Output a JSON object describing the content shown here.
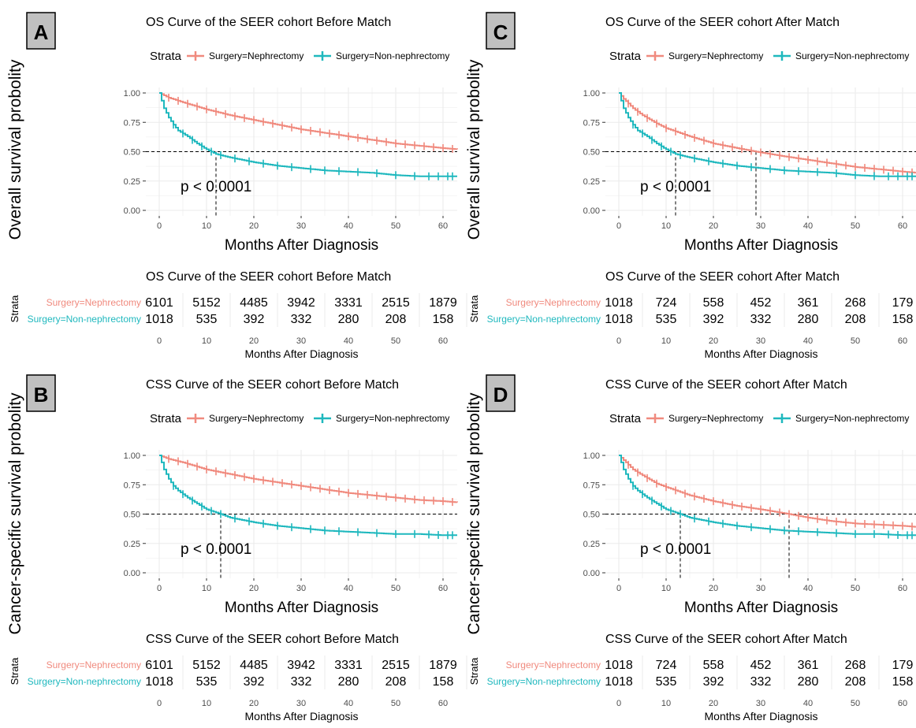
{
  "colors": {
    "nephrectomy": "#F08A7E",
    "non_nephrectomy": "#1FB8BE",
    "median_line": "#000000",
    "panel_badge": "#C0C0C0",
    "grid": "#EBEBEB",
    "axis_text": "#4D4D4D"
  },
  "y_labels": {
    "top": "Overall survival probolity",
    "bottom": "Cancer-specific survival probolity"
  },
  "legend": {
    "title": "Strata",
    "nephrectomy": "Surgery=Nephrectomy",
    "non_nephrectomy": "Surgery=Non-nephrectomy"
  },
  "risk_table": {
    "strata_label": "Strata",
    "xlabel": "Months After Diagnosis"
  },
  "chart_data": [
    {
      "panel": "A",
      "type": "line",
      "title": "OS Curve of the SEER cohort Before Match",
      "xlabel": "Months After Diagnosis",
      "ylabel": "Overall survival probolity",
      "xlim": [
        0,
        63
      ],
      "ylim": [
        0,
        1
      ],
      "x_ticks": [
        0,
        10,
        20,
        30,
        40,
        50,
        60
      ],
      "y_ticks": [
        "0.00",
        "0.25",
        "0.50",
        "0.75",
        "1.00"
      ],
      "p_value": "p < 0.0001",
      "median_reference": {
        "y": 0.5,
        "medians_x": [
          12
        ]
      },
      "series": [
        {
          "name": "Surgery=Nephrectomy",
          "points": [
            [
              0,
              1.0
            ],
            [
              2,
              0.96
            ],
            [
              5,
              0.92
            ],
            [
              10,
              0.86
            ],
            [
              15,
              0.81
            ],
            [
              20,
              0.77
            ],
            [
              25,
              0.73
            ],
            [
              30,
              0.69
            ],
            [
              35,
              0.66
            ],
            [
              40,
              0.63
            ],
            [
              45,
              0.6
            ],
            [
              50,
              0.57
            ],
            [
              55,
              0.55
            ],
            [
              60,
              0.53
            ],
            [
              63,
              0.52
            ]
          ],
          "censor_x": [
            2,
            4,
            6,
            8,
            10,
            12,
            14,
            16,
            18,
            20,
            22,
            24,
            26,
            28,
            30,
            32,
            34,
            36,
            38,
            40,
            42,
            44,
            46,
            48,
            50,
            52,
            54,
            56,
            58,
            60,
            62
          ]
        },
        {
          "name": "Surgery=Non-nephrectomy",
          "points": [
            [
              0,
              1.0
            ],
            [
              1,
              0.87
            ],
            [
              2,
              0.79
            ],
            [
              3,
              0.73
            ],
            [
              4,
              0.68
            ],
            [
              6,
              0.63
            ],
            [
              8,
              0.57
            ],
            [
              10,
              0.52
            ],
            [
              12,
              0.48
            ],
            [
              15,
              0.45
            ],
            [
              20,
              0.41
            ],
            [
              25,
              0.38
            ],
            [
              30,
              0.36
            ],
            [
              35,
              0.34
            ],
            [
              40,
              0.33
            ],
            [
              45,
              0.32
            ],
            [
              50,
              0.3
            ],
            [
              55,
              0.29
            ],
            [
              60,
              0.29
            ],
            [
              63,
              0.29
            ]
          ],
          "censor_x": [
            3,
            5,
            7,
            9,
            11,
            13,
            16,
            19,
            22,
            25,
            28,
            32,
            35,
            38,
            42,
            46,
            50,
            54,
            57,
            59,
            61,
            62
          ]
        }
      ],
      "risk_table": {
        "title": "OS Curve of the SEER cohort Before Match",
        "times": [
          0,
          10,
          20,
          30,
          40,
          50,
          60
        ],
        "nephrectomy": [
          6101,
          5152,
          4485,
          3942,
          3331,
          2515,
          1879
        ],
        "non_nephrectomy": [
          1018,
          535,
          392,
          332,
          280,
          208,
          158
        ]
      }
    },
    {
      "panel": "C",
      "type": "line",
      "title": "OS Curve of the SEER cohort After Match",
      "xlabel": "Months After Diagnosis",
      "ylabel": "Overall survival probolity",
      "xlim": [
        0,
        63
      ],
      "ylim": [
        0,
        1
      ],
      "x_ticks": [
        0,
        10,
        20,
        30,
        40,
        50,
        60
      ],
      "y_ticks": [
        "0.00",
        "0.25",
        "0.50",
        "0.75",
        "1.00"
      ],
      "p_value": "p < 0.0001",
      "median_reference": {
        "y": 0.5,
        "medians_x": [
          12,
          29
        ]
      },
      "series": [
        {
          "name": "Surgery=Nephrectomy",
          "points": [
            [
              0,
              1.0
            ],
            [
              1,
              0.95
            ],
            [
              2,
              0.91
            ],
            [
              3,
              0.87
            ],
            [
              5,
              0.81
            ],
            [
              8,
              0.74
            ],
            [
              10,
              0.7
            ],
            [
              15,
              0.63
            ],
            [
              20,
              0.57
            ],
            [
              25,
              0.53
            ],
            [
              29,
              0.5
            ],
            [
              35,
              0.46
            ],
            [
              40,
              0.43
            ],
            [
              45,
              0.4
            ],
            [
              50,
              0.37
            ],
            [
              55,
              0.35
            ],
            [
              60,
              0.33
            ],
            [
              63,
              0.32
            ]
          ],
          "censor_x": [
            2,
            4,
            6,
            8,
            10,
            12,
            14,
            16,
            18,
            20,
            22,
            24,
            26,
            28,
            30,
            32,
            34,
            36,
            38,
            40,
            42,
            44,
            46,
            48,
            50,
            52,
            54,
            56,
            58,
            60,
            62
          ]
        },
        {
          "name": "Surgery=Non-nephrectomy",
          "points": [
            [
              0,
              1.0
            ],
            [
              1,
              0.87
            ],
            [
              2,
              0.79
            ],
            [
              3,
              0.73
            ],
            [
              4,
              0.68
            ],
            [
              6,
              0.63
            ],
            [
              8,
              0.57
            ],
            [
              10,
              0.52
            ],
            [
              12,
              0.48
            ],
            [
              15,
              0.45
            ],
            [
              20,
              0.41
            ],
            [
              25,
              0.38
            ],
            [
              30,
              0.36
            ],
            [
              35,
              0.34
            ],
            [
              40,
              0.33
            ],
            [
              45,
              0.32
            ],
            [
              50,
              0.3
            ],
            [
              55,
              0.29
            ],
            [
              60,
              0.29
            ],
            [
              63,
              0.29
            ]
          ],
          "censor_x": [
            3,
            5,
            7,
            9,
            11,
            13,
            16,
            19,
            22,
            25,
            28,
            32,
            35,
            38,
            42,
            46,
            50,
            54,
            57,
            59,
            61,
            62
          ]
        }
      ],
      "risk_table": {
        "title": "OS Curve of the SEER cohort After Match",
        "times": [
          0,
          10,
          20,
          30,
          40,
          50,
          60
        ],
        "nephrectomy": [
          1018,
          724,
          558,
          452,
          361,
          268,
          179
        ],
        "non_nephrectomy": [
          1018,
          535,
          392,
          332,
          280,
          208,
          158
        ]
      }
    },
    {
      "panel": "B",
      "type": "line",
      "title": "CSS Curve of the SEER cohort Before Match",
      "xlabel": "Months After Diagnosis",
      "ylabel": "Cancer-specific survival probolity",
      "xlim": [
        0,
        63
      ],
      "ylim": [
        0,
        1
      ],
      "x_ticks": [
        0,
        10,
        20,
        30,
        40,
        50,
        60
      ],
      "y_ticks": [
        "0.00",
        "0.25",
        "0.50",
        "0.75",
        "1.00"
      ],
      "p_value": "p < 0.0001",
      "median_reference": {
        "y": 0.5,
        "medians_x": [
          13
        ]
      },
      "series": [
        {
          "name": "Surgery=Nephrectomy",
          "points": [
            [
              0,
              1.0
            ],
            [
              2,
              0.97
            ],
            [
              5,
              0.94
            ],
            [
              10,
              0.88
            ],
            [
              15,
              0.84
            ],
            [
              20,
              0.8
            ],
            [
              25,
              0.77
            ],
            [
              30,
              0.74
            ],
            [
              35,
              0.71
            ],
            [
              40,
              0.68
            ],
            [
              45,
              0.66
            ],
            [
              50,
              0.64
            ],
            [
              55,
              0.62
            ],
            [
              60,
              0.61
            ],
            [
              63,
              0.6
            ]
          ],
          "censor_x": [
            2,
            4,
            6,
            8,
            10,
            12,
            14,
            16,
            18,
            20,
            22,
            24,
            26,
            28,
            30,
            32,
            34,
            36,
            38,
            40,
            42,
            44,
            46,
            48,
            50,
            52,
            54,
            56,
            58,
            60,
            62
          ]
        },
        {
          "name": "Surgery=Non-nephrectomy",
          "points": [
            [
              0,
              1.0
            ],
            [
              1,
              0.88
            ],
            [
              2,
              0.8
            ],
            [
              3,
              0.74
            ],
            [
              4,
              0.7
            ],
            [
              6,
              0.64
            ],
            [
              8,
              0.59
            ],
            [
              10,
              0.54
            ],
            [
              13,
              0.5
            ],
            [
              15,
              0.47
            ],
            [
              20,
              0.43
            ],
            [
              25,
              0.4
            ],
            [
              30,
              0.38
            ],
            [
              35,
              0.36
            ],
            [
              40,
              0.35
            ],
            [
              45,
              0.34
            ],
            [
              50,
              0.33
            ],
            [
              55,
              0.33
            ],
            [
              60,
              0.32
            ],
            [
              63,
              0.32
            ]
          ],
          "censor_x": [
            3,
            5,
            7,
            9,
            11,
            13,
            16,
            19,
            22,
            25,
            28,
            32,
            35,
            38,
            42,
            46,
            50,
            54,
            57,
            59,
            61,
            62
          ]
        }
      ],
      "risk_table": {
        "title": "CSS Curve of the SEER cohort Before Match",
        "times": [
          0,
          10,
          20,
          30,
          40,
          50,
          60
        ],
        "nephrectomy": [
          6101,
          5152,
          4485,
          3942,
          3331,
          2515,
          1879
        ],
        "non_nephrectomy": [
          1018,
          535,
          392,
          332,
          280,
          208,
          158
        ]
      }
    },
    {
      "panel": "D",
      "type": "line",
      "title": "CSS Curve of the SEER cohort After Match",
      "xlabel": "Months After Diagnosis",
      "ylabel": "Cancer-specific survival probolity",
      "xlim": [
        0,
        63
      ],
      "ylim": [
        0,
        1
      ],
      "x_ticks": [
        0,
        10,
        20,
        30,
        40,
        50,
        60
      ],
      "y_ticks": [
        "0.00",
        "0.25",
        "0.50",
        "0.75",
        "1.00"
      ],
      "p_value": "p < 0.0001",
      "median_reference": {
        "y": 0.5,
        "medians_x": [
          13,
          36
        ]
      },
      "series": [
        {
          "name": "Surgery=Nephrectomy",
          "points": [
            [
              0,
              1.0
            ],
            [
              1,
              0.96
            ],
            [
              2,
              0.92
            ],
            [
              3,
              0.88
            ],
            [
              5,
              0.83
            ],
            [
              8,
              0.76
            ],
            [
              10,
              0.73
            ],
            [
              15,
              0.66
            ],
            [
              20,
              0.61
            ],
            [
              25,
              0.57
            ],
            [
              30,
              0.54
            ],
            [
              36,
              0.5
            ],
            [
              40,
              0.47
            ],
            [
              45,
              0.44
            ],
            [
              50,
              0.42
            ],
            [
              55,
              0.41
            ],
            [
              60,
              0.4
            ],
            [
              63,
              0.39
            ]
          ],
          "censor_x": [
            2,
            4,
            6,
            8,
            10,
            12,
            14,
            16,
            18,
            20,
            22,
            24,
            26,
            28,
            30,
            32,
            34,
            36,
            38,
            40,
            42,
            44,
            46,
            48,
            50,
            52,
            54,
            56,
            58,
            60,
            62
          ]
        },
        {
          "name": "Surgery=Non-nephrectomy",
          "points": [
            [
              0,
              1.0
            ],
            [
              1,
              0.88
            ],
            [
              2,
              0.8
            ],
            [
              3,
              0.74
            ],
            [
              4,
              0.7
            ],
            [
              6,
              0.64
            ],
            [
              8,
              0.59
            ],
            [
              10,
              0.54
            ],
            [
              13,
              0.5
            ],
            [
              15,
              0.47
            ],
            [
              20,
              0.43
            ],
            [
              25,
              0.4
            ],
            [
              30,
              0.38
            ],
            [
              35,
              0.36
            ],
            [
              40,
              0.35
            ],
            [
              45,
              0.34
            ],
            [
              50,
              0.33
            ],
            [
              55,
              0.33
            ],
            [
              60,
              0.32
            ],
            [
              63,
              0.32
            ]
          ],
          "censor_x": [
            3,
            5,
            7,
            9,
            11,
            13,
            16,
            19,
            22,
            25,
            28,
            32,
            35,
            38,
            42,
            46,
            50,
            54,
            57,
            59,
            61,
            62
          ]
        }
      ],
      "risk_table": {
        "title": "CSS Curve of the SEER cohort After Match",
        "times": [
          0,
          10,
          20,
          30,
          40,
          50,
          60
        ],
        "nephrectomy": [
          1018,
          724,
          558,
          452,
          361,
          268,
          179
        ],
        "non_nephrectomy": [
          1018,
          535,
          392,
          332,
          280,
          208,
          158
        ]
      }
    }
  ]
}
